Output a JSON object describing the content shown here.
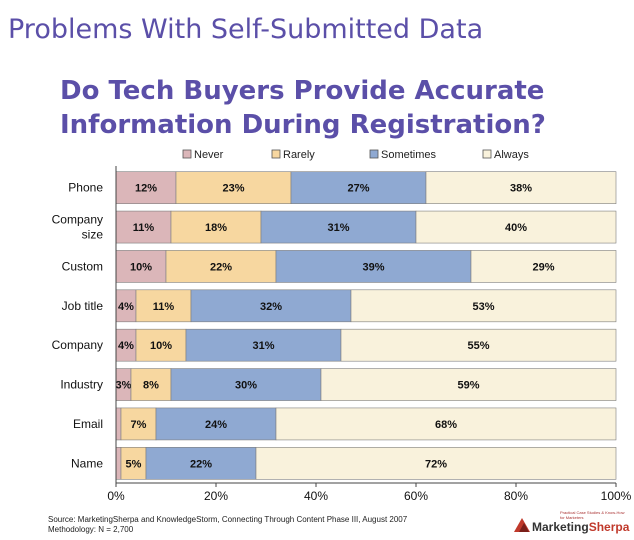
{
  "slide_title": "Problems With Self-Submitted Data",
  "footer": {
    "source": "Source: MarketingSherpa and KnowledgeStorm, Connecting Through Content Phase III, August 2007",
    "methodology": "Methodology: N = 2,700"
  },
  "logo": {
    "word1": "Marketing",
    "word2": "Sherpa",
    "tagline_1": "Practical Case Studies & Know-How",
    "tagline_2": "for Marketers"
  },
  "chart_data": {
    "type": "bar",
    "orientation": "horizontal",
    "stacked": "percent",
    "title": "Do Tech Buyers Provide Accurate Information During Registration?",
    "categories": [
      [
        "Phone"
      ],
      [
        "Company",
        "size"
      ],
      [
        "Custom"
      ],
      [
        "Job title"
      ],
      [
        "Company"
      ],
      [
        "Industry"
      ],
      [
        "Email"
      ],
      [
        "Name"
      ]
    ],
    "series": [
      {
        "name": "Never",
        "color": "#dbb6b9",
        "values": [
          12,
          11,
          10,
          4,
          4,
          3,
          1,
          1
        ],
        "labels": [
          "12%",
          "11%",
          "10%",
          "4%",
          "4%",
          "3%",
          "",
          ""
        ]
      },
      {
        "name": "Rarely",
        "color": "#f7d7a0",
        "values": [
          23,
          18,
          22,
          11,
          10,
          8,
          7,
          5
        ],
        "labels": [
          "23%",
          "18%",
          "22%",
          "11%",
          "10%",
          "8%",
          "7%",
          "5%"
        ]
      },
      {
        "name": "Sometimes",
        "color": "#8fa9d2",
        "values": [
          27,
          31,
          39,
          32,
          31,
          30,
          24,
          22
        ],
        "labels": [
          "27%",
          "31%",
          "39%",
          "32%",
          "31%",
          "30%",
          "24%",
          "22%"
        ]
      },
      {
        "name": "Always",
        "color": "#f9f2dc",
        "values": [
          38,
          40,
          29,
          53,
          55,
          59,
          68,
          72
        ],
        "labels": [
          "38%",
          "40%",
          "29%",
          "53%",
          "55%",
          "59%",
          "68%",
          "72%"
        ]
      }
    ],
    "xlim": [
      0,
      100
    ],
    "xticks": [
      "0%",
      "20%",
      "40%",
      "60%",
      "80%",
      "100%"
    ],
    "grid": false,
    "legend": "top"
  }
}
